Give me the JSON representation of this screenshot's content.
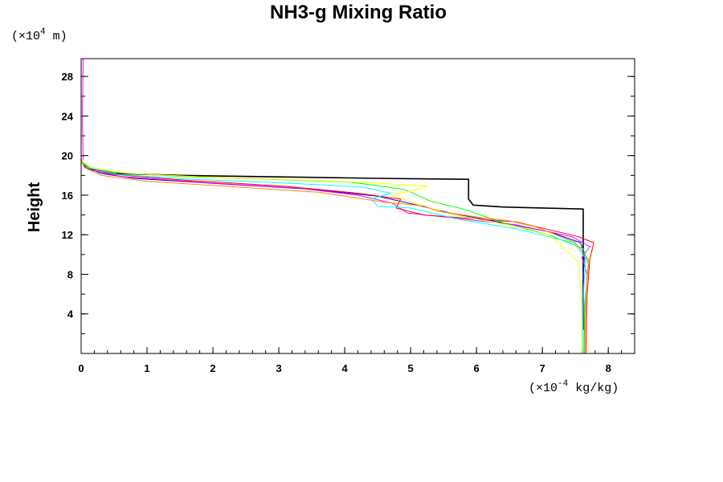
{
  "chart_data": {
    "type": "line",
    "title": "NH3-g Mixing Ratio",
    "xlabel": "",
    "ylabel": "Height",
    "x_unit": {
      "prefix": "(×10",
      "exponent": "-4",
      "suffix": " kg/kg)"
    },
    "y_unit": {
      "prefix": "(×10",
      "exponent": "4",
      "suffix": " m)"
    },
    "xlim": [
      0,
      8.4
    ],
    "ylim": [
      0,
      29.8
    ],
    "x_ticks": [
      0,
      1,
      2,
      3,
      4,
      5,
      6,
      7,
      8
    ],
    "y_ticks": [
      4,
      8,
      12,
      16,
      20,
      24,
      28
    ],
    "x_tick_labels": [
      "0",
      "1",
      "2",
      "3",
      "4",
      "5",
      "6",
      "7",
      "8"
    ],
    "y_tick_labels": [
      "4",
      "8",
      "12",
      "16",
      "20",
      "24",
      "28"
    ],
    "x_minor_step": 0.2,
    "y_minor_step": 2,
    "grid": false,
    "legend": "none",
    "series": [
      {
        "color": "#000000",
        "points": [
          [
            7.62,
            2.4
          ],
          [
            7.62,
            12
          ],
          [
            7.62,
            14.6
          ],
          [
            6.4,
            14.8
          ],
          [
            5.95,
            15
          ],
          [
            5.88,
            15.6
          ],
          [
            5.88,
            17.6
          ],
          [
            4.5,
            17.7
          ],
          [
            3,
            17.85
          ],
          [
            1.5,
            18
          ],
          [
            0.5,
            18.2
          ],
          [
            0.12,
            18.7
          ],
          [
            0.02,
            19.3
          ],
          [
            0,
            19.6
          ]
        ]
      },
      {
        "color": "#0000ff",
        "points": [
          [
            7.6,
            2.4
          ],
          [
            7.62,
            8
          ],
          [
            7.64,
            10
          ],
          [
            7.58,
            11.2
          ],
          [
            7.1,
            12.3
          ],
          [
            6.4,
            13.2
          ],
          [
            5.6,
            14.2
          ],
          [
            5.1,
            15
          ],
          [
            4.5,
            15.9
          ],
          [
            3.5,
            16.6
          ],
          [
            2,
            17.2
          ],
          [
            0.8,
            17.7
          ],
          [
            0.3,
            18.2
          ],
          [
            0.05,
            18.9
          ],
          [
            0,
            19.5
          ]
        ]
      },
      {
        "color": "#ff00ff",
        "points": [
          [
            7.64,
            0
          ],
          [
            7.64,
            4
          ],
          [
            7.68,
            8
          ],
          [
            7.6,
            9.7
          ],
          [
            7.72,
            10.8
          ],
          [
            7.45,
            11.8
          ],
          [
            6.6,
            13
          ],
          [
            5.5,
            13.8
          ],
          [
            4.95,
            14.2
          ],
          [
            4.72,
            15.2
          ],
          [
            4.2,
            16
          ],
          [
            3.3,
            16.7
          ],
          [
            1.8,
            17.3
          ],
          [
            0.6,
            17.9
          ],
          [
            0.1,
            18.6
          ],
          [
            0,
            19.5
          ]
        ]
      },
      {
        "color": "#ff0000",
        "points": [
          [
            7.66,
            0
          ],
          [
            7.68,
            6
          ],
          [
            7.72,
            9.5
          ],
          [
            7.78,
            11.2
          ],
          [
            7.55,
            11.8
          ],
          [
            6.6,
            13.3
          ],
          [
            5.8,
            13.7
          ],
          [
            5.2,
            14
          ],
          [
            4.78,
            14.7
          ],
          [
            4.85,
            15.6
          ],
          [
            4.2,
            16.2
          ],
          [
            3.1,
            16.9
          ],
          [
            1.6,
            17.5
          ],
          [
            0.5,
            18.1
          ],
          [
            0.08,
            18.8
          ],
          [
            0,
            19.6
          ]
        ]
      },
      {
        "color": "#00ff00",
        "points": [
          [
            7.63,
            0
          ],
          [
            7.64,
            5
          ],
          [
            7.7,
            9
          ],
          [
            7.62,
            10.6
          ],
          [
            7.1,
            12
          ],
          [
            6.5,
            13
          ],
          [
            5.8,
            14.6
          ],
          [
            5.3,
            15.4
          ],
          [
            4.9,
            16.6
          ],
          [
            4.1,
            17.3
          ],
          [
            2.9,
            17.6
          ],
          [
            1.5,
            17.9
          ],
          [
            0.5,
            18.3
          ],
          [
            0.1,
            18.9
          ],
          [
            0,
            19.5
          ]
        ]
      },
      {
        "color": "#00ffff",
        "points": [
          [
            7.61,
            0
          ],
          [
            7.62,
            6
          ],
          [
            7.66,
            9.6
          ],
          [
            7.48,
            11.2
          ],
          [
            6.6,
            12.6
          ],
          [
            5.7,
            13.6
          ],
          [
            5.0,
            14.7
          ],
          [
            4.5,
            14.9
          ],
          [
            4.4,
            15.6
          ],
          [
            4.7,
            16.2
          ],
          [
            4.3,
            16.8
          ],
          [
            3.2,
            17.2
          ],
          [
            1.7,
            17.6
          ],
          [
            0.55,
            18.1
          ],
          [
            0.1,
            18.8
          ],
          [
            0,
            19.5
          ]
        ]
      },
      {
        "color": "#ffff00",
        "points": [
          [
            7.6,
            0
          ],
          [
            7.6,
            5
          ],
          [
            7.55,
            9.2
          ],
          [
            7.3,
            10.8
          ],
          [
            7.1,
            12
          ],
          [
            6.8,
            12.6
          ],
          [
            6.3,
            13.2
          ],
          [
            5.6,
            14.1
          ],
          [
            5.1,
            15.1
          ],
          [
            4.7,
            16
          ],
          [
            5.0,
            16.4
          ],
          [
            5.25,
            16.9
          ],
          [
            4.6,
            17.2
          ],
          [
            3.5,
            17.5
          ],
          [
            2,
            17.8
          ],
          [
            0.7,
            18.2
          ],
          [
            0.15,
            18.8
          ],
          [
            0,
            19.5
          ]
        ]
      },
      {
        "color": "#ff8c00",
        "points": [
          [
            7.64,
            0
          ],
          [
            7.66,
            6
          ],
          [
            7.7,
            9.5
          ],
          [
            7.5,
            11.2
          ],
          [
            7.2,
            12
          ],
          [
            6.9,
            12.8
          ],
          [
            6.5,
            13.4
          ],
          [
            6.0,
            13.8
          ],
          [
            5.4,
            14.4
          ],
          [
            5.2,
            14.9
          ],
          [
            4.6,
            15.3
          ],
          [
            3.6,
            16.3
          ],
          [
            2.2,
            16.9
          ],
          [
            1.0,
            17.4
          ],
          [
            0.3,
            18.0
          ],
          [
            0.05,
            18.8
          ],
          [
            0,
            19.5
          ]
        ]
      },
      {
        "color": "#ff00ff",
        "points": [
          [
            0.03,
            19.6
          ],
          [
            0.02,
            24
          ],
          [
            0.03,
            29.8
          ]
        ]
      }
    ]
  }
}
